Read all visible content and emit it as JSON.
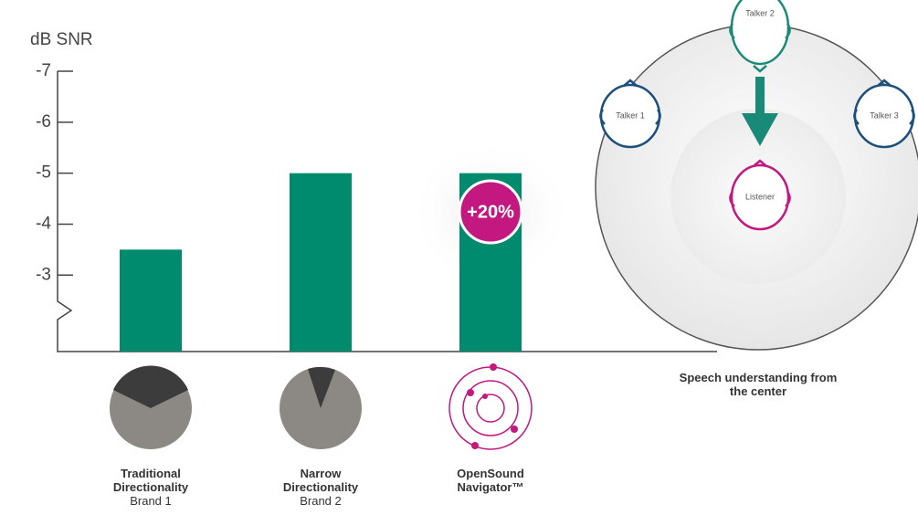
{
  "chart_data": {
    "type": "bar",
    "title": "dB SNR",
    "categories": [
      "Traditional Directionality",
      "Narrow Directionality",
      "OpenSound Navigator™"
    ],
    "sublabels": [
      "Brand 1",
      "Brand 2"
    ],
    "values": [
      -3.5,
      -5,
      -5
    ],
    "color": "#008a6e",
    "ylim": [
      -1.5,
      -7
    ],
    "yticks": [
      -7,
      -6,
      -5,
      -4,
      -3
    ],
    "annotation": "+20%"
  },
  "diagram": {
    "talkers": [
      "Talker 1",
      "Talker 2",
      "Talker 3"
    ],
    "listener": "Listener",
    "caption": "Speech understanding from the center"
  }
}
